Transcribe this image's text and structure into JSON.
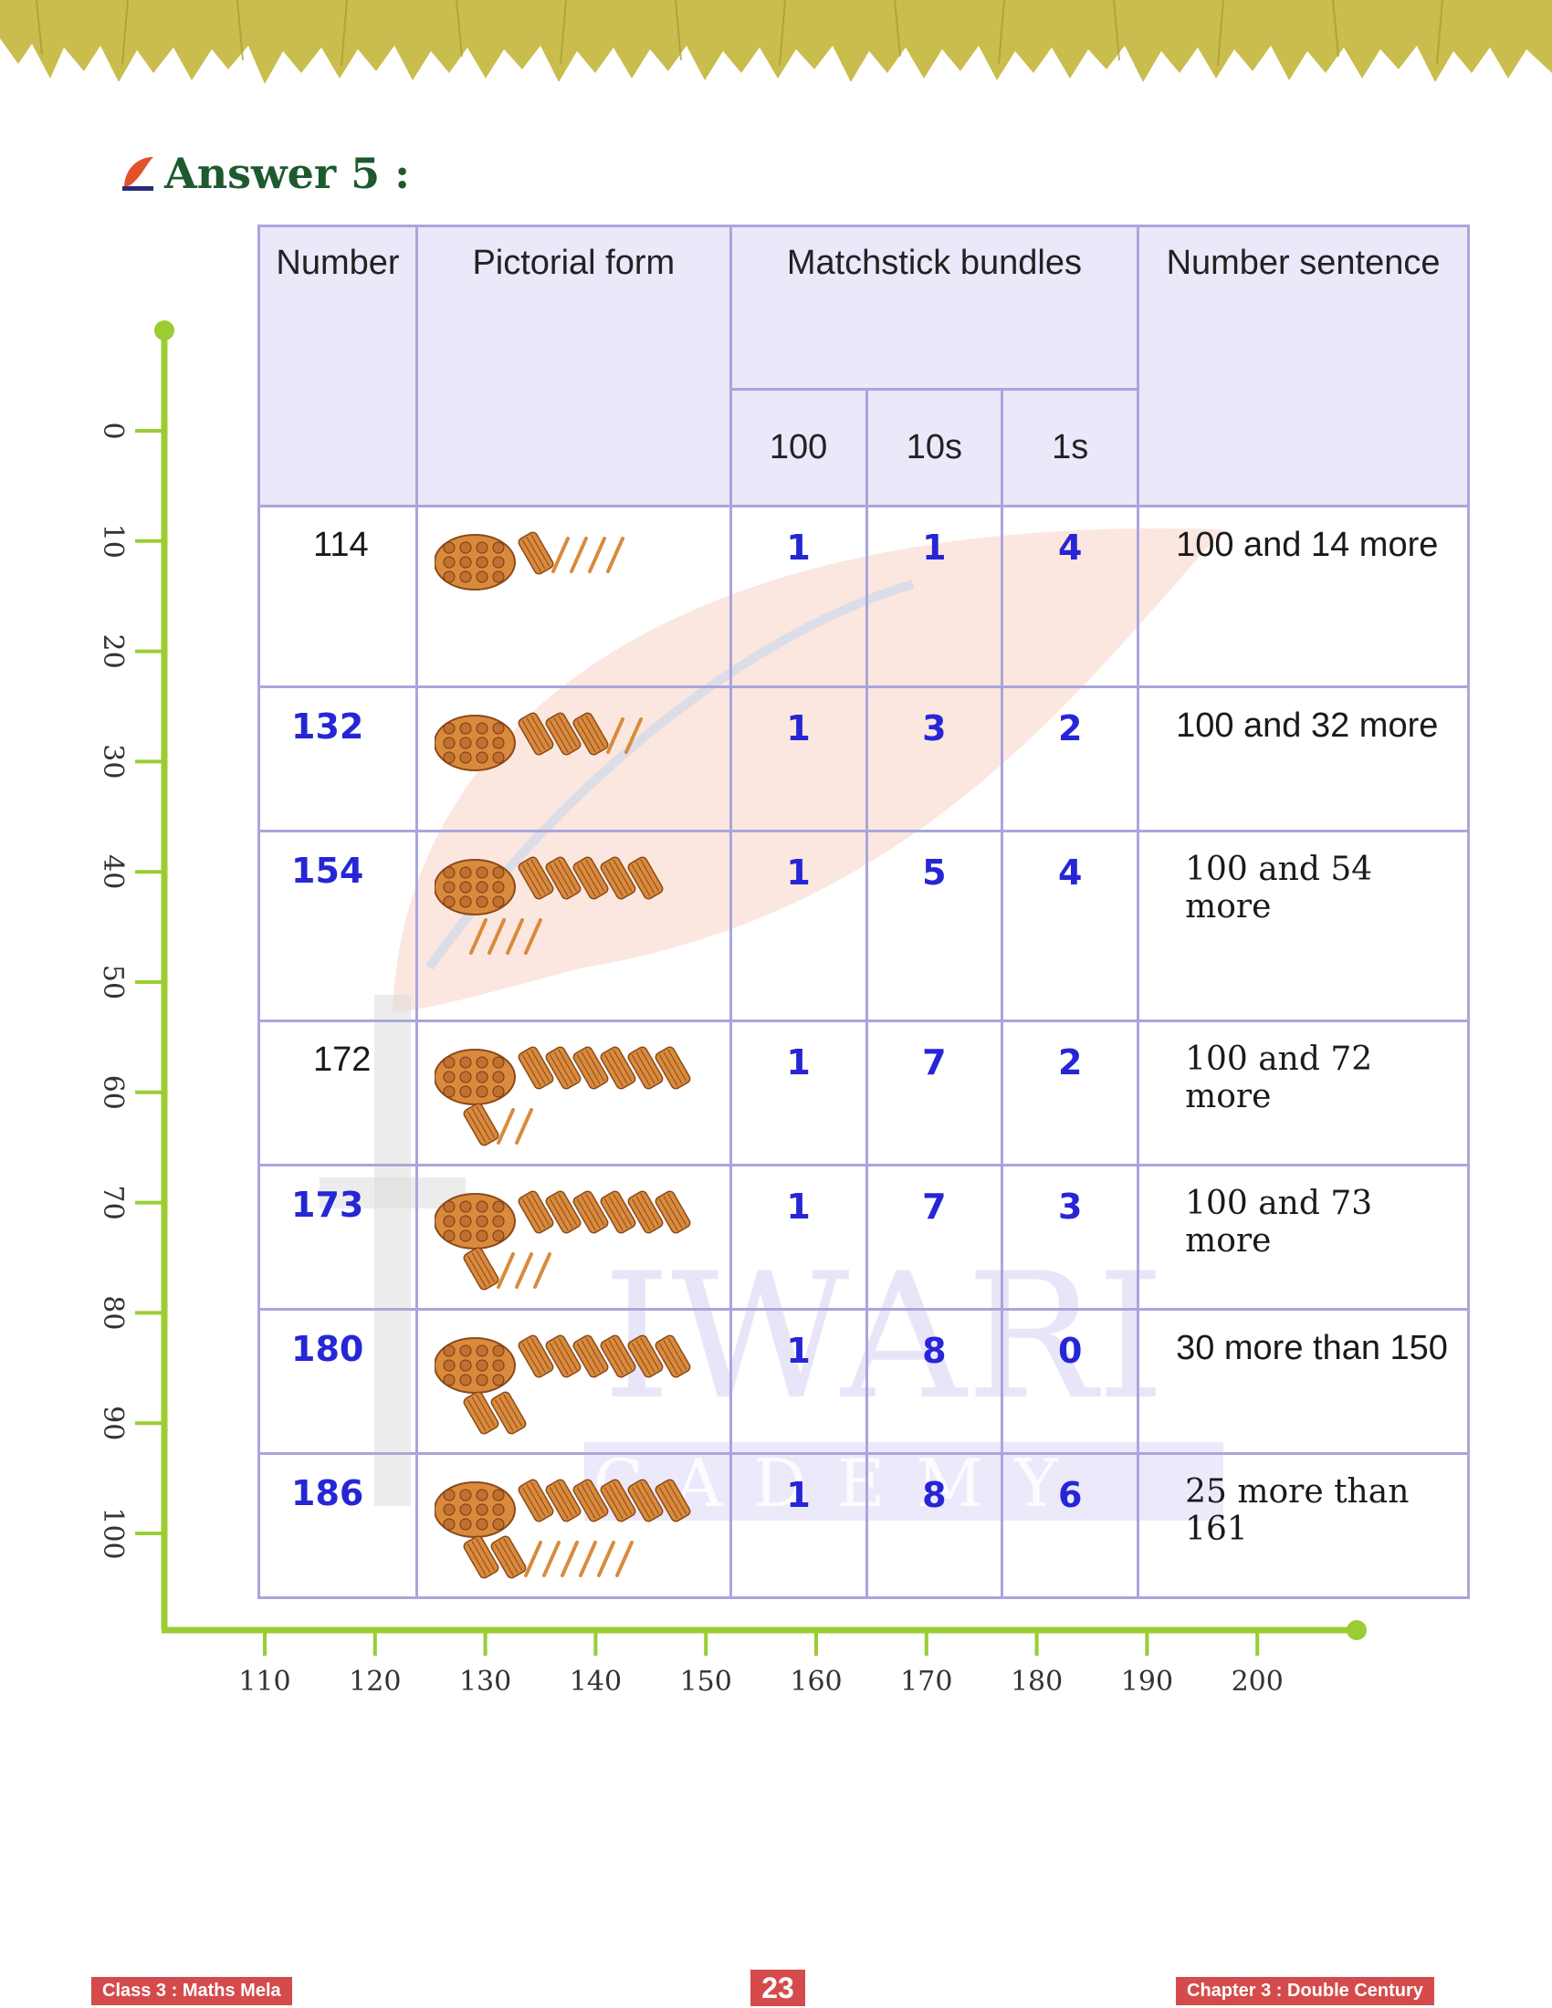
{
  "heading": {
    "title": "Answer 5 :",
    "logo_text": "TIWARI"
  },
  "watermark": {
    "line1": "IWARI",
    "line2": "CADEMY"
  },
  "table": {
    "headers": {
      "number": "Number",
      "pictorial": "Pictorial form",
      "bundles": "Matchstick bundles",
      "sentence": "Number sentence",
      "sub_hundreds": "100",
      "sub_tens": "10s",
      "sub_ones": "1s"
    },
    "rows": [
      {
        "number": "114",
        "number_style": "plain",
        "hundreds": "1",
        "tens": "1",
        "ones": "4",
        "sentence": "100 and 14 more",
        "sentence_style": "sans"
      },
      {
        "number": "132",
        "number_style": "blue",
        "hundreds": "1",
        "tens": "3",
        "ones": "2",
        "sentence": "100 and 32 more",
        "sentence_style": "sans"
      },
      {
        "number": "154",
        "number_style": "blue",
        "hundreds": "1",
        "tens": "5",
        "ones": "4",
        "sentence": "100 and 54 more",
        "sentence_style": "serif"
      },
      {
        "number": "172",
        "number_style": "plain",
        "hundreds": "1",
        "tens": "7",
        "ones": "2",
        "sentence": "100 and 72 more",
        "sentence_style": "serif"
      },
      {
        "number": "173",
        "number_style": "blue",
        "hundreds": "1",
        "tens": "7",
        "ones": "3",
        "sentence": "100 and 73 more",
        "sentence_style": "serif"
      },
      {
        "number": "180",
        "number_style": "blue",
        "hundreds": "1",
        "tens": "8",
        "ones": "0",
        "sentence": "30 more than 150",
        "sentence_style": "sans"
      },
      {
        "number": "186",
        "number_style": "blue",
        "hundreds": "1",
        "tens": "8",
        "ones": "6",
        "sentence": "25 more than 161",
        "sentence_style": "serif"
      }
    ]
  },
  "axes": {
    "vertical_ticks": [
      "0",
      "10",
      "20",
      "30",
      "40",
      "50",
      "60",
      "70",
      "80",
      "90",
      "100"
    ],
    "horizontal_ticks": [
      "110",
      "120",
      "130",
      "140",
      "150",
      "160",
      "170",
      "180",
      "190",
      "200"
    ],
    "axis_color": "#9acd32"
  },
  "footer": {
    "left": "Class 3 : Maths Mela",
    "page": "23",
    "right": "Chapter 3 : Double Century"
  },
  "colors": {
    "digit_blue": "#2626d6",
    "header_bg": "#e8e6f9",
    "border": "#a9a6dc",
    "footer_red": "#d54b4b",
    "heading_green": "#1d5a2e"
  }
}
